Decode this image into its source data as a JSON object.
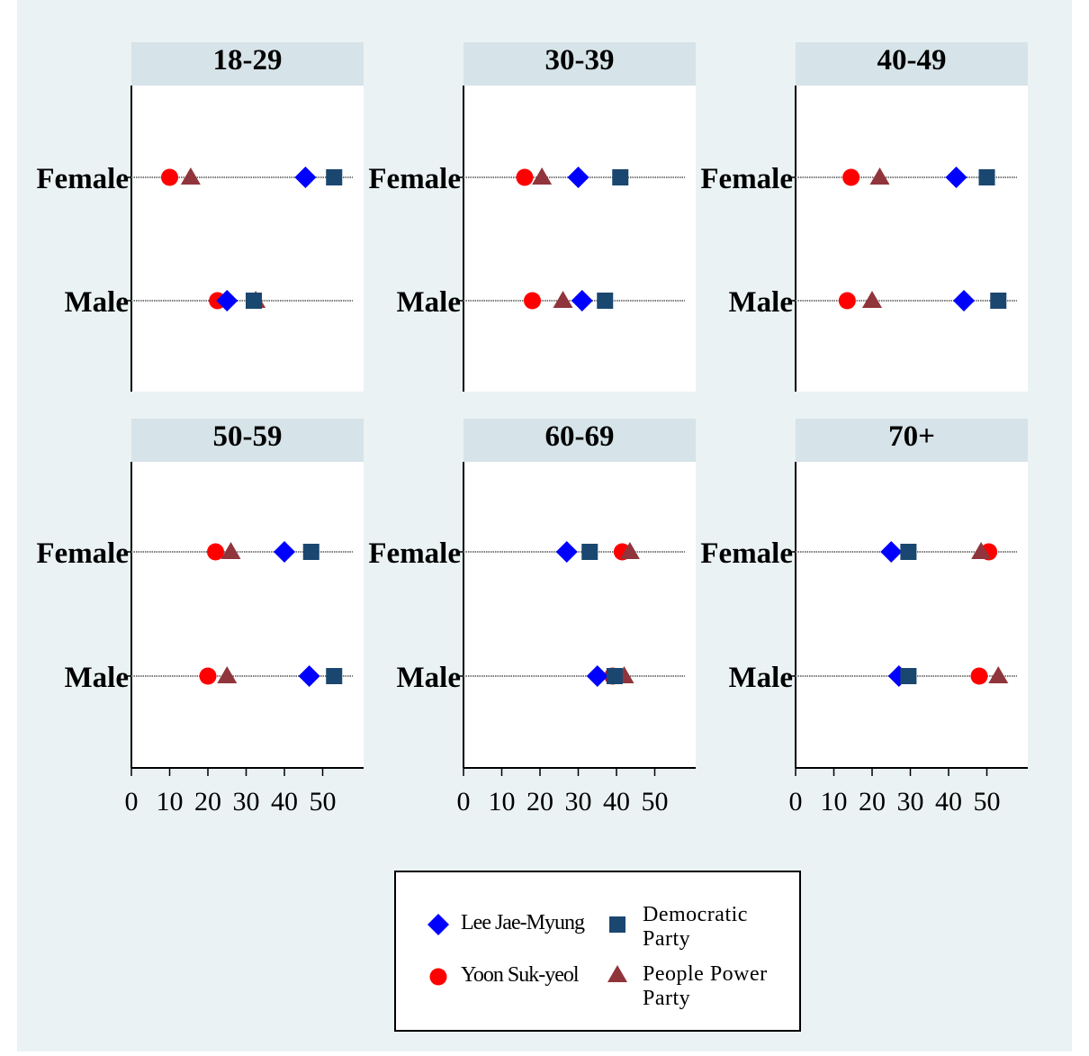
{
  "chart_data": {
    "type": "scatter",
    "layout": "faceted-dot-plot",
    "x_ticks": [
      0,
      10,
      20,
      30,
      40,
      50
    ],
    "x_tick_labels": [
      "0",
      "10",
      "20",
      "30",
      "40",
      "50"
    ],
    "xlim": [
      0,
      60
    ],
    "rows": [
      "Female",
      "Male"
    ],
    "series": [
      {
        "key": "lee",
        "name": "Lee Jae-Myung",
        "marker": "diamond",
        "color": "#0000ff"
      },
      {
        "key": "dp",
        "name": "Democratic Party",
        "marker": "square",
        "color": "#1a476f"
      },
      {
        "key": "yoon",
        "name": "Yoon Suk-yeol",
        "marker": "circle",
        "color": "#ff0000"
      },
      {
        "key": "ppp",
        "name": "People Power Party",
        "marker": "triangle",
        "color": "#90353b"
      }
    ],
    "legend": {
      "placement": "bottom-center",
      "entries": [
        {
          "marker": "diamond",
          "color": "#0000ff",
          "lines": [
            "Lee Jae-Myung"
          ]
        },
        {
          "marker": "square",
          "color": "#1a476f",
          "lines": [
            "Democratic",
            "Party"
          ]
        },
        {
          "marker": "circle",
          "color": "#ff0000",
          "lines": [
            "Yoon Suk-yeol"
          ]
        },
        {
          "marker": "triangle",
          "color": "#90353b",
          "lines": [
            "People Power",
            "Party"
          ]
        }
      ]
    },
    "panels": [
      {
        "title": "18-29",
        "Female": {
          "lee": 45.5,
          "dp": 53,
          "yoon": 10,
          "ppp": 15.5
        },
        "Male": {
          "lee": 25,
          "dp": 32,
          "yoon": 22.5,
          "ppp": 32.5
        }
      },
      {
        "title": "30-39",
        "Female": {
          "lee": 30,
          "dp": 41,
          "yoon": 16,
          "ppp": 20.5
        },
        "Male": {
          "lee": 31,
          "dp": 37,
          "yoon": 18,
          "ppp": 26
        }
      },
      {
        "title": "40-49",
        "Female": {
          "lee": 42,
          "dp": 50,
          "yoon": 14.5,
          "ppp": 22
        },
        "Male": {
          "lee": 44,
          "dp": 53,
          "yoon": 13.5,
          "ppp": 20
        }
      },
      {
        "title": "50-59",
        "Female": {
          "lee": 40,
          "dp": 47,
          "yoon": 22,
          "ppp": 26
        },
        "Male": {
          "lee": 46.5,
          "dp": 53,
          "yoon": 20,
          "ppp": 25
        }
      },
      {
        "title": "60-69",
        "Female": {
          "lee": 27,
          "dp": 33,
          "yoon": 41.5,
          "ppp": 43.5
        },
        "Male": {
          "lee": 35,
          "dp": 39.5,
          "yoon": 39,
          "ppp": 42
        }
      },
      {
        "title": "70+",
        "Female": {
          "lee": 25,
          "dp": 29.5,
          "yoon": 50.5,
          "ppp": 48.5
        },
        "Male": {
          "lee": 27,
          "dp": 29.5,
          "yoon": 48,
          "ppp": 53
        }
      }
    ]
  }
}
